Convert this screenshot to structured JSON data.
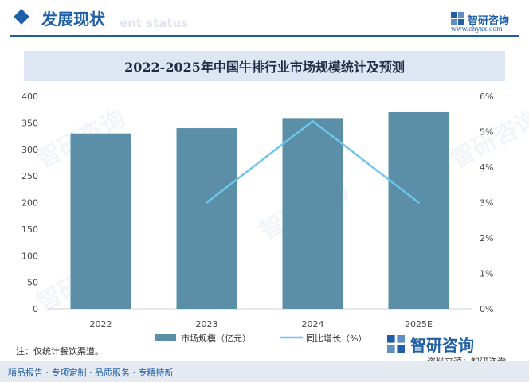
{
  "header": {
    "title": "发展现状",
    "subtitle_ghost": "ent status",
    "brand": "智研咨询",
    "website": "www.chyxx.com"
  },
  "banner": {
    "title": "2022-2025年中国牛排行业市场规模统计及预测"
  },
  "watermark_text": "智研咨询",
  "icons": {
    "header": "diamond-icon",
    "brand": "logo-icon"
  },
  "colors": {
    "accent": "#1f5fa8",
    "bar": "#5b8fa7",
    "line": "#6ec6ec",
    "banner_bg": "#dce7f3",
    "footer_bg": "#e5eaf1"
  },
  "chart_data": {
    "type": "bar",
    "title": "2022-2025年中国牛排行业市场规模统计及预测",
    "categories": [
      "2022",
      "2023",
      "2024",
      "2025E"
    ],
    "series": [
      {
        "name": "市场规模（亿元）",
        "type": "bar",
        "axis": "left",
        "values": [
          330,
          340,
          359,
          370
        ]
      },
      {
        "name": "同比增长（%）",
        "type": "line",
        "axis": "right",
        "values": [
          null,
          3.0,
          5.3,
          3.0
        ]
      }
    ],
    "y_left": {
      "min": 0,
      "max": 400,
      "ticks": [
        "0",
        "50",
        "100",
        "150",
        "200",
        "250",
        "300",
        "350",
        "400"
      ]
    },
    "y_right": {
      "min": 0,
      "max": 6,
      "ticks": [
        "0%",
        "1%",
        "2%",
        "3%",
        "4%",
        "5%",
        "6%"
      ]
    },
    "grid": false,
    "legend_position": "bottom"
  },
  "footer": {
    "note": "注：仅统计餐饮渠道。",
    "source": "资料来源：智研咨询",
    "services": "精品报告 · 专项定制 · 品质服务 · 专精持新"
  }
}
